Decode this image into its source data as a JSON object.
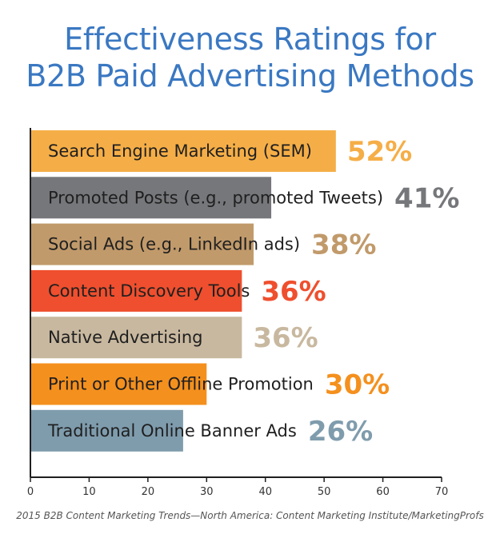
{
  "title_line1": "Effectiveness Ratings for",
  "title_line2": "B2B Paid Advertising Methods",
  "source": "2015 B2B Content Marketing Trends—North America: Content Marketing Institute/MarketingProfs",
  "chart_data": {
    "type": "bar",
    "orientation": "horizontal",
    "title": "Effectiveness Ratings for B2B Paid Advertising Methods",
    "categories": [
      "Search Engine Marketing (SEM)",
      "Promoted Posts (e.g., promoted Tweets)",
      "Social Ads (e.g., LinkedIn ads)",
      "Content Discovery Tools",
      "Native Advertising",
      "Print or Other Offline Promotion",
      "Traditional Online Banner Ads"
    ],
    "values": [
      52,
      41,
      38,
      36,
      36,
      30,
      26
    ],
    "value_labels": [
      "52%",
      "41%",
      "38%",
      "36%",
      "36%",
      "30%",
      "26%"
    ],
    "colors": [
      "#f5ae47",
      "#76777b",
      "#c19a6b",
      "#ef4f2e",
      "#c8b89f",
      "#f4901e",
      "#7f9cad"
    ],
    "label_colors": [
      "#f5ae47",
      "#76777b",
      "#c19a6b",
      "#ef4f2e",
      "#c8b89f",
      "#f4901e",
      "#7f9cad"
    ],
    "xlim": [
      0,
      70
    ],
    "xticks": [
      0,
      10,
      20,
      30,
      40,
      50,
      60,
      70
    ],
    "xlabel": "",
    "ylabel": "",
    "grid": false
  }
}
